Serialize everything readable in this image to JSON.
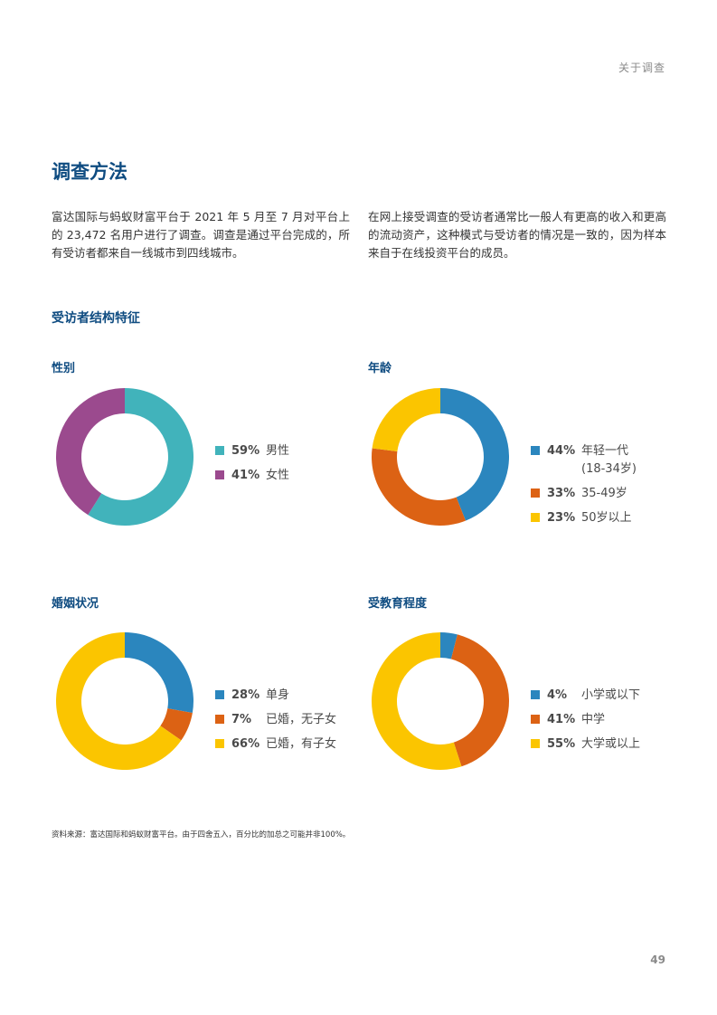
{
  "header": {
    "section_label": "关于调查"
  },
  "title": "调查方法",
  "paragraphs": {
    "left": "富达国际与蚂蚁财富平台于 2021 年 5 月至 7 月对平台上的 23,472 名用户进行了调查。调查是通过平台完成的，所有受访者都来自一线城市到四线城市。",
    "right": "在网上接受调查的受访者通常比一般人有更高的收入和更高的流动资产，这种模式与受访者的情况是一致的，因为样本来自于在线投资平台的成员。"
  },
  "subheading": "受访者结构特征",
  "chart_data": [
    {
      "type": "pie",
      "title": "性别",
      "categories": [
        "男性",
        "女性"
      ],
      "values": [
        59,
        41
      ],
      "labels": [
        "59%",
        "41%"
      ],
      "colors": [
        "#41b3bb",
        "#9b4a8e"
      ],
      "legend": "right"
    },
    {
      "type": "pie",
      "title": "年龄",
      "categories": [
        "年轻一代\n(18-34岁)",
        "35-49岁",
        "50岁以上"
      ],
      "values": [
        44,
        33,
        23
      ],
      "labels": [
        "44%",
        "33%",
        "23%"
      ],
      "colors": [
        "#2b86be",
        "#dc6214",
        "#fbc500"
      ],
      "legend": "right"
    },
    {
      "type": "pie",
      "title": "婚姻状况",
      "categories": [
        "单身",
        "已婚，无子女",
        "已婚，有子女"
      ],
      "values": [
        28,
        7,
        66
      ],
      "labels": [
        "28%",
        "7%",
        "66%"
      ],
      "colors": [
        "#2b86be",
        "#dc6214",
        "#fbc500"
      ],
      "legend": "right"
    },
    {
      "type": "pie",
      "title": "受教育程度",
      "categories": [
        "小学或以下",
        "中学",
        "大学或以上"
      ],
      "values": [
        4,
        41,
        55
      ],
      "labels": [
        "4%",
        "41%",
        "55%"
      ],
      "colors": [
        "#2b86be",
        "#dc6214",
        "#fbc500"
      ],
      "legend": "right"
    }
  ],
  "footnote": "资料来源：富达国际和蚂蚁财富平台。由于四舍五入，百分比的加总之可能并非100%。",
  "page_number": "49"
}
